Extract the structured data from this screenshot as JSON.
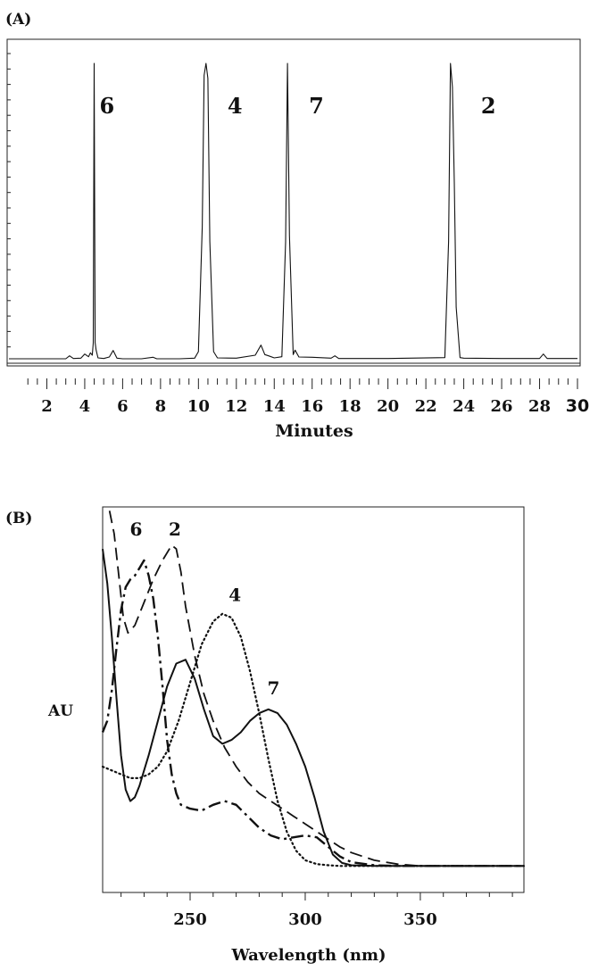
{
  "chart_data": [
    {
      "panel": "(A)",
      "type": "line",
      "xlabel": "Minutes",
      "ylabel": "",
      "xlim": [
        0,
        30
      ],
      "xticks": [
        2,
        4,
        6,
        8,
        10,
        12,
        14,
        16,
        18,
        20,
        22,
        24,
        26,
        28,
        30
      ],
      "peaks": [
        {
          "label": "6",
          "x": 4.5
        },
        {
          "label": "4",
          "x": 10.4
        },
        {
          "label": "7",
          "x": 14.7
        },
        {
          "label": "2",
          "x": 23.4
        }
      ],
      "series": [
        {
          "x": [
            0,
            3.0,
            3.2,
            3.4,
            3.8,
            4.0,
            4.2,
            4.3,
            4.4,
            4.45,
            4.5,
            4.55,
            4.6,
            4.7,
            5.0,
            5.3,
            5.5,
            5.7,
            6.0,
            7.0,
            7.6,
            7.8,
            8.2,
            9.0,
            9.8,
            10.0,
            10.2,
            10.3,
            10.4,
            10.5,
            10.6,
            10.8,
            11.0,
            12.0,
            13.0,
            13.3,
            13.5,
            13.7,
            14.0,
            14.4,
            14.6,
            14.7,
            14.8,
            15.0,
            15.1,
            15.3,
            16.0,
            17.0,
            17.2,
            17.4,
            20.0,
            23.0,
            23.2,
            23.3,
            23.4,
            23.5,
            23.6,
            23.8,
            24.0,
            26.0,
            28.0,
            28.2,
            28.4,
            30.0
          ],
          "y": [
            0.6,
            0.6,
            1.6,
            0.7,
            0.8,
            2.2,
            1.3,
            2.6,
            1.8,
            6.0,
            100,
            6.0,
            3.5,
            0.9,
            0.7,
            1.2,
            3.4,
            0.8,
            0.6,
            0.6,
            1.1,
            0.6,
            0.6,
            0.6,
            0.8,
            3.0,
            45,
            96,
            100,
            95,
            40,
            3.0,
            0.9,
            0.8,
            1.8,
            5.2,
            2.0,
            1.6,
            0.9,
            1.3,
            40,
            100,
            42,
            2.0,
            3.5,
            1.2,
            1.1,
            0.8,
            1.6,
            0.7,
            0.7,
            1.0,
            40,
            100,
            92,
            60,
            18,
            1.0,
            0.8,
            0.7,
            0.7,
            2.2,
            0.7,
            0.7
          ]
        }
      ]
    },
    {
      "panel": "(B)",
      "type": "line",
      "xlabel": "Wavelength (nm)",
      "ylabel": "AU",
      "xlim": [
        212,
        395
      ],
      "xticks": [
        250,
        300,
        350
      ],
      "series": [
        {
          "label": "2",
          "style": "dashed",
          "x": [
            215,
            217,
            219,
            221,
            223,
            226,
            230,
            234,
            238,
            242,
            244,
            246,
            248,
            252,
            256,
            260,
            265,
            270,
            275,
            280,
            285,
            290,
            295,
            300,
            305,
            310,
            315,
            320,
            325,
            330,
            340,
            350,
            360,
            370,
            380,
            395
          ],
          "y": [
            99,
            93,
            82,
            71,
            67,
            69,
            75,
            81,
            86,
            90,
            89,
            83,
            74,
            61,
            51,
            44,
            37,
            32,
            28,
            25,
            23,
            21,
            19,
            17,
            15,
            13,
            11,
            9.5,
            8.5,
            7.5,
            6.5,
            6,
            6,
            6,
            6,
            6
          ]
        },
        {
          "label": "6",
          "style": "dash-dot",
          "x": [
            212,
            214,
            216,
            218,
            220,
            222,
            224,
            226,
            228,
            230,
            232,
            234,
            236,
            238,
            240,
            242,
            244,
            246,
            250,
            255,
            260,
            265,
            270,
            275,
            280,
            285,
            290,
            295,
            300,
            305,
            310,
            315,
            320,
            330,
            340,
            350,
            360,
            380,
            395
          ],
          "y": [
            41,
            44,
            52,
            63,
            73,
            79,
            81,
            82,
            84,
            86,
            82,
            76,
            66,
            53,
            39,
            30,
            25,
            22,
            21,
            20.5,
            22,
            23,
            22,
            19,
            16,
            14,
            13,
            13.5,
            14,
            13.5,
            11,
            8.5,
            7,
            6.2,
            6,
            6,
            6,
            6,
            6
          ]
        },
        {
          "label": "4",
          "style": "dotted",
          "x": [
            212,
            216,
            220,
            224,
            228,
            232,
            236,
            240,
            245,
            250,
            255,
            260,
            264,
            268,
            272,
            276,
            280,
            284,
            288,
            292,
            296,
            300,
            305,
            310,
            315,
            320,
            330,
            340,
            360,
            395
          ],
          "y": [
            32,
            31,
            30,
            29,
            29,
            30,
            32,
            36,
            44,
            54,
            64,
            70,
            72,
            71,
            66,
            57,
            46,
            34,
            23,
            15,
            10,
            7.5,
            6.5,
            6.2,
            6,
            6,
            6,
            6,
            6,
            6
          ]
        },
        {
          "label": "7",
          "style": "solid",
          "x": [
            212,
            214,
            216,
            218,
            220,
            222,
            224,
            226,
            228,
            230,
            232,
            236,
            240,
            244,
            248,
            252,
            256,
            260,
            264,
            268,
            272,
            276,
            280,
            284,
            288,
            292,
            296,
            300,
            304,
            308,
            312,
            316,
            320,
            330,
            340,
            360,
            395
          ],
          "y": [
            89,
            80,
            66,
            50,
            35,
            26,
            23,
            24,
            27,
            31,
            35,
            44,
            53,
            59,
            60,
            55,
            47,
            40,
            38,
            39,
            41,
            44,
            46,
            47,
            46,
            43,
            38,
            32,
            24,
            15,
            9,
            6.8,
            6.2,
            6,
            6,
            6,
            6
          ]
        }
      ]
    }
  ]
}
